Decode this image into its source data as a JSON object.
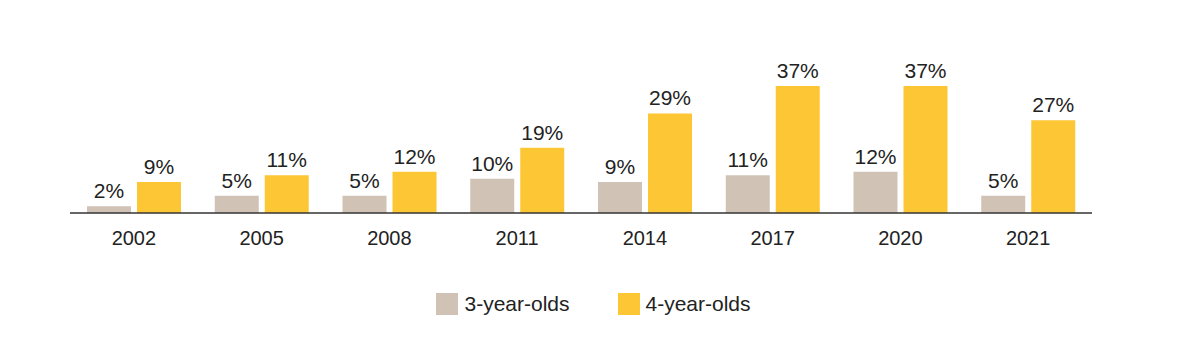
{
  "chart_data": {
    "type": "bar",
    "categories": [
      "2002",
      "2005",
      "2008",
      "2011",
      "2014",
      "2017",
      "2020",
      "2021"
    ],
    "series": [
      {
        "name": "3-year-olds",
        "color": "#d0c3b6",
        "values": [
          2,
          5,
          5,
          10,
          9,
          11,
          12,
          5
        ],
        "value_labels": [
          "2%",
          "5%",
          "5%",
          "10%",
          "9%",
          "11%",
          "12%",
          "5%"
        ]
      },
      {
        "name": "4-year-olds",
        "color": "#fcc634",
        "values": [
          9,
          11,
          12,
          19,
          29,
          37,
          37,
          27
        ],
        "value_labels": [
          "9%",
          "11%",
          "12%",
          "19%",
          "29%",
          "37%",
          "37%",
          "27%"
        ]
      }
    ],
    "data_labels": true,
    "tick_labels": "x",
    "grid": false,
    "legend": "bottom"
  }
}
